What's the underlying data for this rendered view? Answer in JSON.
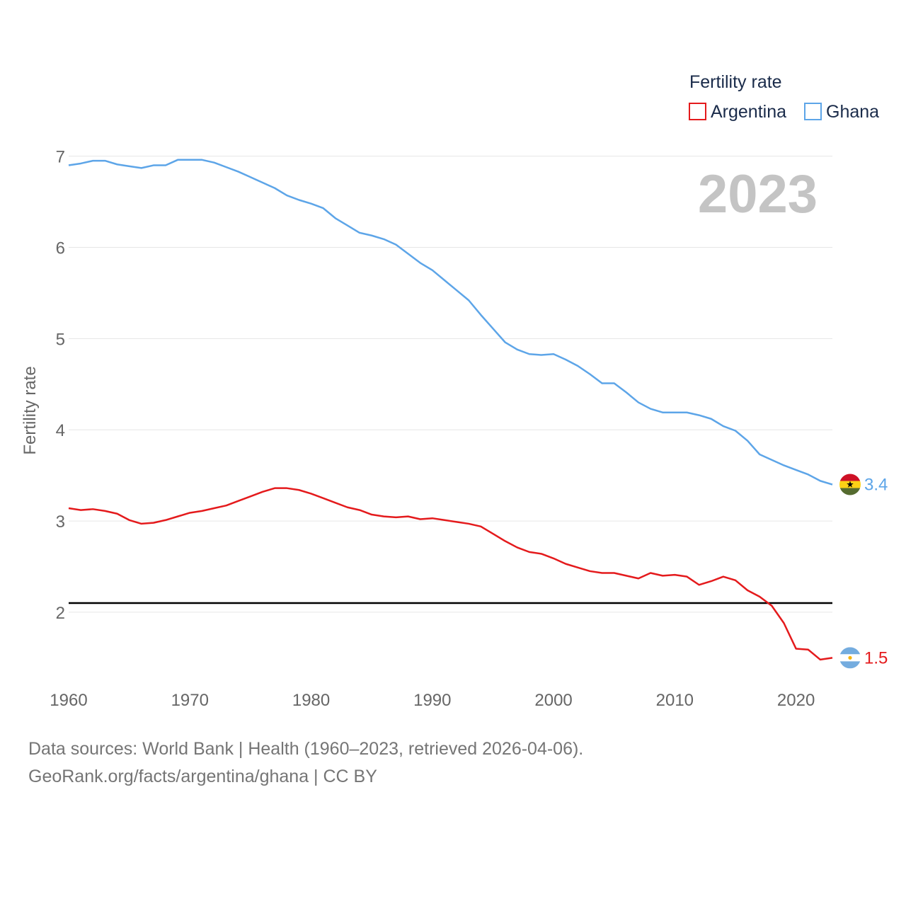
{
  "chart_data": {
    "type": "line",
    "ylabel": "Fertility rate",
    "xlabel": "",
    "legend_title": "Fertility rate",
    "legend_position": "top-right",
    "year_overlay": "2023",
    "xlim": [
      1960,
      2023
    ],
    "ylim": [
      1.2,
      7.3
    ],
    "x_ticks": [
      1960,
      1970,
      1980,
      1990,
      2000,
      2010,
      2020
    ],
    "y_ticks": [
      2,
      3,
      4,
      5,
      6,
      7
    ],
    "grid": true,
    "reference_line": {
      "y": 2.1,
      "color": "#000000"
    },
    "x": [
      1960,
      1961,
      1962,
      1963,
      1964,
      1965,
      1966,
      1967,
      1968,
      1969,
      1970,
      1971,
      1972,
      1973,
      1974,
      1975,
      1976,
      1977,
      1978,
      1979,
      1980,
      1981,
      1982,
      1983,
      1984,
      1985,
      1986,
      1987,
      1988,
      1989,
      1990,
      1991,
      1992,
      1993,
      1994,
      1995,
      1996,
      1997,
      1998,
      1999,
      2000,
      2001,
      2002,
      2003,
      2004,
      2005,
      2006,
      2007,
      2008,
      2009,
      2010,
      2011,
      2012,
      2013,
      2014,
      2015,
      2016,
      2017,
      2018,
      2019,
      2020,
      2021,
      2022,
      2023
    ],
    "series": [
      {
        "name": "Argentina",
        "color": "#e41a1c",
        "end_label": "1.5",
        "flag": "argentina",
        "values": [
          3.14,
          3.12,
          3.13,
          3.11,
          3.08,
          3.01,
          2.97,
          2.98,
          3.01,
          3.05,
          3.09,
          3.11,
          3.14,
          3.17,
          3.22,
          3.27,
          3.32,
          3.36,
          3.36,
          3.34,
          3.3,
          3.25,
          3.2,
          3.15,
          3.12,
          3.07,
          3.05,
          3.04,
          3.05,
          3.02,
          3.03,
          3.01,
          2.99,
          2.97,
          2.94,
          2.86,
          2.78,
          2.71,
          2.66,
          2.64,
          2.59,
          2.53,
          2.49,
          2.45,
          2.43,
          2.43,
          2.4,
          2.37,
          2.43,
          2.4,
          2.41,
          2.39,
          2.3,
          2.34,
          2.39,
          2.35,
          2.24,
          2.17,
          2.07,
          1.88,
          1.6,
          1.59,
          1.48,
          1.5
        ]
      },
      {
        "name": "Ghana",
        "color": "#5da5e8",
        "end_label": "3.4",
        "flag": "ghana",
        "values": [
          6.9,
          6.92,
          6.95,
          6.95,
          6.91,
          6.89,
          6.87,
          6.9,
          6.9,
          6.96,
          6.96,
          6.96,
          6.93,
          6.88,
          6.83,
          6.77,
          6.71,
          6.65,
          6.57,
          6.52,
          6.48,
          6.43,
          6.32,
          6.24,
          6.16,
          6.13,
          6.09,
          6.03,
          5.93,
          5.83,
          5.75,
          5.64,
          5.53,
          5.42,
          5.26,
          5.11,
          4.96,
          4.88,
          4.83,
          4.82,
          4.83,
          4.77,
          4.7,
          4.61,
          4.51,
          4.51,
          4.41,
          4.3,
          4.23,
          4.19,
          4.19,
          4.19,
          4.16,
          4.12,
          4.04,
          3.99,
          3.88,
          3.73,
          3.67,
          3.61,
          3.56,
          3.51,
          3.44,
          3.4
        ]
      }
    ]
  },
  "footer": {
    "source_line_1": "Data sources: World Bank | Health (1960–2023, retrieved 2026-04-06).",
    "source_line_2": "GeoRank.org/facts/argentina/ghana | CC BY"
  }
}
